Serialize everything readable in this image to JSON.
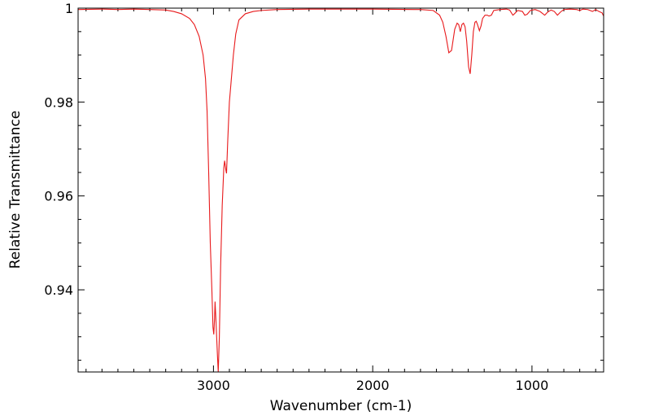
{
  "chart_data": {
    "type": "line",
    "title": "",
    "xlabel": "Wavenumber (cm-1)",
    "ylabel": "Relative Transmittance",
    "xlim": [
      3850,
      550
    ],
    "ylim": [
      0.9225,
      1.0
    ],
    "x_reversed": true,
    "grid": false,
    "legend": "none",
    "line_color": "#e8191b",
    "x_ticks": [
      {
        "value": 3000,
        "label": "3000"
      },
      {
        "value": 2000,
        "label": "2000"
      },
      {
        "value": 1000,
        "label": "1000"
      }
    ],
    "y_ticks": [
      {
        "value": 1.0,
        "label": "1"
      },
      {
        "value": 0.98,
        "label": "0.98"
      },
      {
        "value": 0.96,
        "label": "0.96"
      },
      {
        "value": 0.94,
        "label": "0.94"
      }
    ],
    "series": [
      {
        "points": [
          [
            3850,
            0.9997
          ],
          [
            3700,
            0.9998
          ],
          [
            3600,
            0.9997
          ],
          [
            3500,
            0.9998
          ],
          [
            3400,
            0.9997
          ],
          [
            3300,
            0.9996
          ],
          [
            3250,
            0.9993
          ],
          [
            3200,
            0.9988
          ],
          [
            3150,
            0.9978
          ],
          [
            3120,
            0.9965
          ],
          [
            3090,
            0.994
          ],
          [
            3065,
            0.99
          ],
          [
            3050,
            0.985
          ],
          [
            3040,
            0.978
          ],
          [
            3030,
            0.965
          ],
          [
            3020,
            0.95
          ],
          [
            3010,
            0.94
          ],
          [
            3003,
            0.932
          ],
          [
            2998,
            0.9305
          ],
          [
            2993,
            0.934
          ],
          [
            2990,
            0.9375
          ],
          [
            2985,
            0.934
          ],
          [
            2975,
            0.926
          ],
          [
            2970,
            0.9225
          ],
          [
            2963,
            0.93
          ],
          [
            2955,
            0.945
          ],
          [
            2945,
            0.958
          ],
          [
            2935,
            0.966
          ],
          [
            2930,
            0.9675
          ],
          [
            2922,
            0.9655
          ],
          [
            2918,
            0.9648
          ],
          [
            2910,
            0.972
          ],
          [
            2900,
            0.98
          ],
          [
            2890,
            0.984
          ],
          [
            2875,
            0.99
          ],
          [
            2860,
            0.9945
          ],
          [
            2840,
            0.9975
          ],
          [
            2800,
            0.9988
          ],
          [
            2750,
            0.9993
          ],
          [
            2700,
            0.9995
          ],
          [
            2600,
            0.9997
          ],
          [
            2400,
            0.9998
          ],
          [
            2000,
            0.9998
          ],
          [
            1700,
            0.9997
          ],
          [
            1620,
            0.9995
          ],
          [
            1580,
            0.9985
          ],
          [
            1560,
            0.997
          ],
          [
            1540,
            0.994
          ],
          [
            1522,
            0.9905
          ],
          [
            1505,
            0.991
          ],
          [
            1485,
            0.9955
          ],
          [
            1470,
            0.9968
          ],
          [
            1460,
            0.9965
          ],
          [
            1450,
            0.995
          ],
          [
            1440,
            0.9965
          ],
          [
            1430,
            0.9968
          ],
          [
            1420,
            0.996
          ],
          [
            1410,
            0.993
          ],
          [
            1398,
            0.9875
          ],
          [
            1388,
            0.986
          ],
          [
            1378,
            0.99
          ],
          [
            1368,
            0.995
          ],
          [
            1358,
            0.997
          ],
          [
            1350,
            0.9972
          ],
          [
            1342,
            0.9965
          ],
          [
            1330,
            0.9952
          ],
          [
            1320,
            0.9962
          ],
          [
            1310,
            0.9978
          ],
          [
            1295,
            0.9985
          ],
          [
            1280,
            0.9985
          ],
          [
            1270,
            0.9983
          ],
          [
            1255,
            0.9985
          ],
          [
            1240,
            0.9995
          ],
          [
            1200,
            0.9997
          ],
          [
            1160,
            0.9998
          ],
          [
            1140,
            0.9996
          ],
          [
            1120,
            0.9985
          ],
          [
            1110,
            0.9988
          ],
          [
            1090,
            0.9995
          ],
          [
            1060,
            0.9993
          ],
          [
            1045,
            0.9985
          ],
          [
            1030,
            0.9987
          ],
          [
            1010,
            0.9995
          ],
          [
            980,
            0.9997
          ],
          [
            950,
            0.9993
          ],
          [
            920,
            0.9985
          ],
          [
            900,
            0.9992
          ],
          [
            880,
            0.9996
          ],
          [
            860,
            0.9993
          ],
          [
            840,
            0.9985
          ],
          [
            820,
            0.9992
          ],
          [
            800,
            0.9997
          ],
          [
            760,
            0.9998
          ],
          [
            720,
            0.9997
          ],
          [
            700,
            0.9995
          ],
          [
            680,
            0.9998
          ],
          [
            650,
            0.9997
          ],
          [
            620,
            0.9993
          ],
          [
            600,
            0.9997
          ],
          [
            580,
            0.9993
          ],
          [
            560,
            0.999
          ],
          [
            550,
            0.9983
          ]
        ]
      }
    ]
  }
}
